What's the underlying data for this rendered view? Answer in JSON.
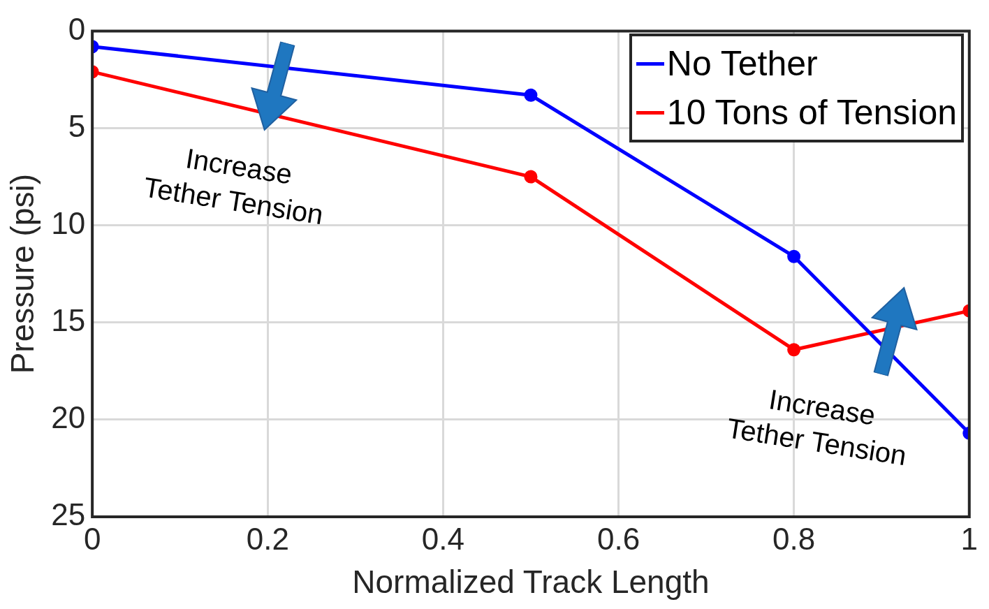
{
  "chart_data": {
    "type": "line",
    "xlabel": "Normalized Track Length",
    "ylabel": "Pressure (psi)",
    "x": [
      0,
      0.5,
      0.8,
      1
    ],
    "series": [
      {
        "name": "No Tether",
        "color": "#0000ff",
        "values": [
          0.8,
          3.3,
          11.6,
          20.7
        ]
      },
      {
        "name": "10 Tons of Tension",
        "color": "#ff0000",
        "values": [
          2.1,
          7.5,
          16.4,
          14.4
        ]
      }
    ],
    "xlim": [
      0,
      1
    ],
    "xticks": [
      0,
      0.2,
      0.4,
      0.6,
      0.8,
      1
    ],
    "ylim": [
      25,
      0
    ],
    "yticks": [
      0,
      5,
      10,
      15,
      20,
      25
    ],
    "grid": true,
    "legend": "top right",
    "marker": "circle",
    "line_style": "solid",
    "annotations": [
      "Increase\nTether Tension",
      "Increase\nTether Tension"
    ]
  }
}
